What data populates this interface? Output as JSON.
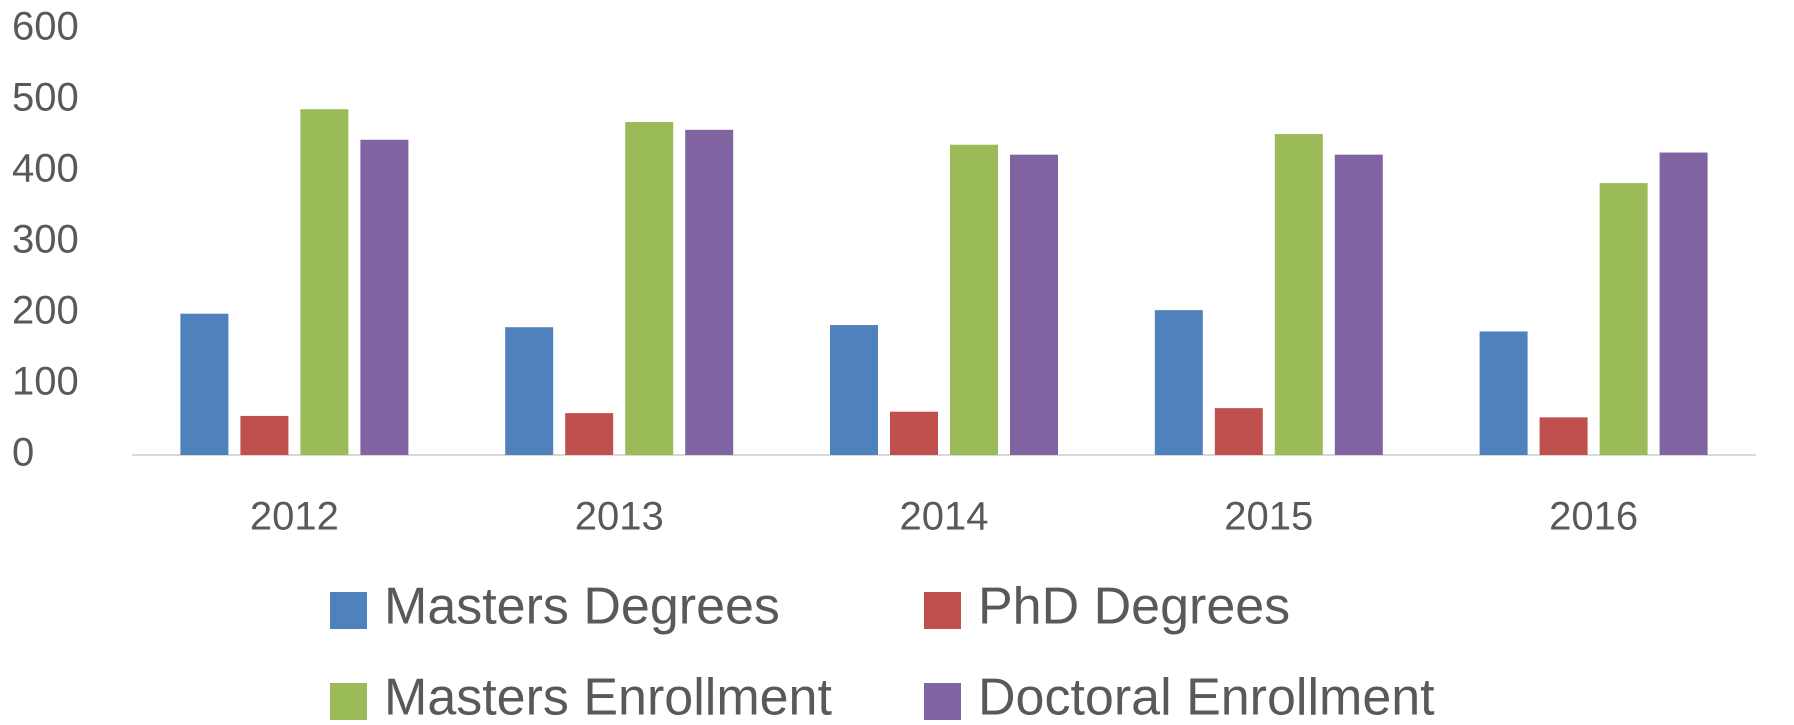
{
  "chart_data": {
    "type": "bar",
    "categories": [
      "2012",
      "2013",
      "2014",
      "2015",
      "2016"
    ],
    "series": [
      {
        "name": "Masters Degrees",
        "color": "#4f81bd",
        "values": [
          199,
          180,
          183,
          204,
          174
        ]
      },
      {
        "name": "PhD Degrees",
        "color": "#c0504d",
        "values": [
          55,
          59,
          61,
          66,
          53
        ]
      },
      {
        "name": "Masters Enrollment",
        "color": "#9bbb59",
        "values": [
          487,
          469,
          437,
          452,
          383
        ]
      },
      {
        "name": "Doctoral Enrollment",
        "color": "#8064a2",
        "values": [
          444,
          458,
          423,
          423,
          426
        ]
      }
    ],
    "ylim": [
      0,
      600
    ],
    "yticks": [
      0,
      100,
      200,
      300,
      400,
      500,
      600
    ],
    "grid": false,
    "legend": "bottom"
  }
}
